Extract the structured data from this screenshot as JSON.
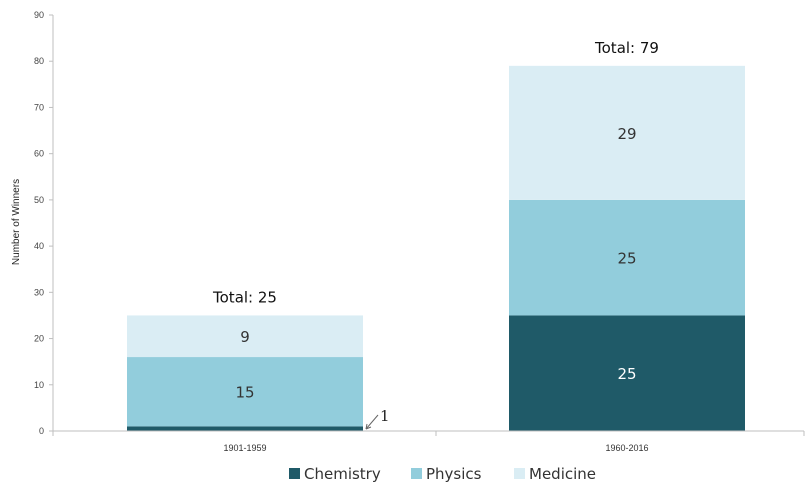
{
  "chart_data": {
    "type": "bar",
    "stacked": true,
    "categories": [
      "1901-1959",
      "1960-2016"
    ],
    "series": [
      {
        "name": "Chemistry",
        "values": [
          1,
          25
        ],
        "color": "#1f5a68"
      },
      {
        "name": "Physics",
        "values": [
          15,
          25
        ],
        "color": "#92cddc"
      },
      {
        "name": "Medicine",
        "values": [
          9,
          29
        ],
        "color": "#daedf4"
      }
    ],
    "segment_labels": [
      [
        "",
        "25"
      ],
      [
        "15",
        "25"
      ],
      [
        "9",
        "29"
      ]
    ],
    "totals": [
      "Total: 25",
      "Total: 79"
    ],
    "annotation": "1",
    "ylabel": "Number of Winners",
    "ylim": [
      0,
      90
    ],
    "yticks": [
      0,
      10,
      20,
      30,
      40,
      50,
      60,
      70,
      80,
      90
    ],
    "legend_position": "bottom",
    "grid": false
  }
}
